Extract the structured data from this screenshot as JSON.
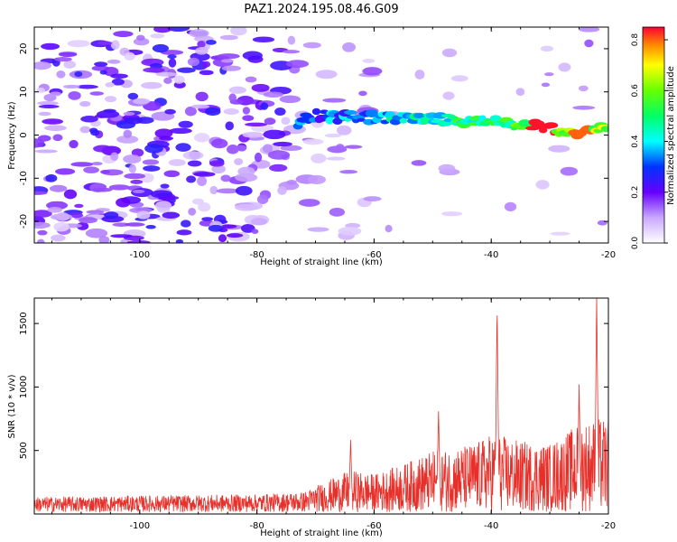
{
  "figure": {
    "title": "PAZ1.2024.195.08.46.G09"
  },
  "chart_data": [
    {
      "id": "spectrogram",
      "type": "heatmap",
      "xlabel": "Height of straight line (km)",
      "ylabel": "Frequency (Hz)",
      "xlim": [
        -118,
        -20
      ],
      "ylim": [
        -25,
        25
      ],
      "xticks": [
        -100,
        -80,
        -60,
        -40,
        -20
      ],
      "xtick_labels": [
        "-100",
        "-80",
        "-60",
        "-40",
        "-20"
      ],
      "yticks": [
        -20,
        -10,
        0,
        10,
        20
      ],
      "ytick_labels": [
        "-20",
        "-10",
        "0",
        "10",
        "20"
      ],
      "colorbar": {
        "label": "Normalized spectral amplitude",
        "range": [
          0,
          0.85
        ],
        "ticks": [
          0.0,
          0.2,
          0.4,
          0.6,
          0.8
        ],
        "tick_labels": [
          "0.0",
          "0.2",
          "0.4",
          "0.6",
          "0.8"
        ],
        "colormap_stops": [
          {
            "v": 0.0,
            "color": "#ffffff"
          },
          {
            "v": 0.1,
            "color": "#c9a7ff"
          },
          {
            "v": 0.2,
            "color": "#6600ff"
          },
          {
            "v": 0.3,
            "color": "#0033ff"
          },
          {
            "v": 0.4,
            "color": "#00ffff"
          },
          {
            "v": 0.5,
            "color": "#00ff66"
          },
          {
            "v": 0.6,
            "color": "#66ff00"
          },
          {
            "v": 0.7,
            "color": "#ffff00"
          },
          {
            "v": 0.78,
            "color": "#ff8800"
          },
          {
            "v": 0.85,
            "color": "#ff0033"
          }
        ]
      },
      "ridge": {
        "description_points": [
          {
            "x": -72,
            "f": 4.5
          },
          {
            "x": -60,
            "f": 4.0
          },
          {
            "x": -50,
            "f": 3.8
          },
          {
            "x": -40,
            "f": 3.2
          },
          {
            "x": -30,
            "f": 1.6
          },
          {
            "x": -24,
            "f": 0.6
          },
          {
            "x": -20,
            "f": 2.5
          }
        ],
        "peak_amplitude": 0.85
      },
      "grid": false
    },
    {
      "id": "snr",
      "type": "line",
      "xlabel": "Height of straight line (km)",
      "ylabel": "SNR (10 * v/v)",
      "xlim": [
        -118,
        -20
      ],
      "ylim": [
        0,
        1700
      ],
      "xticks": [
        -100,
        -80,
        -60,
        -40,
        -20
      ],
      "xtick_labels": [
        "-100",
        "-80",
        "-60",
        "-40",
        "-20"
      ],
      "yticks": [
        500,
        1000,
        1500
      ],
      "ytick_labels": [
        "500",
        "1000",
        "1500"
      ],
      "color": "#e8302a",
      "envelope": {
        "x": [
          -118,
          -100,
          -80,
          -72,
          -68,
          -64,
          -60,
          -55,
          -50,
          -45,
          -42,
          -40,
          -38,
          -35,
          -30,
          -28,
          -25,
          -22,
          -20
        ],
        "y": [
          120,
          130,
          140,
          160,
          250,
          330,
          300,
          380,
          480,
          520,
          560,
          620,
          600,
          560,
          540,
          600,
          700,
          740,
          730
        ]
      },
      "peaks": [
        {
          "x": -39,
          "y": 1620
        },
        {
          "x": -22,
          "y": 1690
        },
        {
          "x": -25,
          "y": 1000
        },
        {
          "x": -49,
          "y": 780
        },
        {
          "x": -64,
          "y": 550
        }
      ],
      "grid": false
    }
  ]
}
